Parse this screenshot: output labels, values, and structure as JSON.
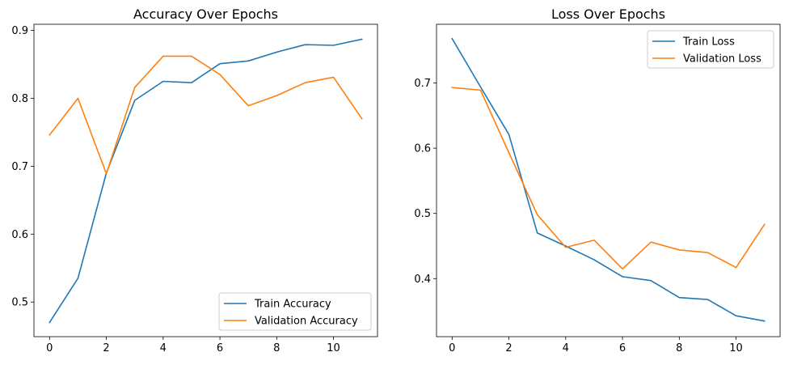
{
  "chart_data": [
    {
      "type": "line",
      "title": "Accuracy Over Epochs",
      "xlabel": "",
      "ylabel": "",
      "xlim": [
        -0.55,
        11.55
      ],
      "ylim": [
        0.449,
        0.909
      ],
      "xticks": [
        0,
        2,
        4,
        6,
        8,
        10
      ],
      "yticks": [
        0.5,
        0.6,
        0.7,
        0.8,
        0.9
      ],
      "ytick_labels": [
        "0.5",
        "0.6",
        "0.7",
        "0.8",
        "0.9"
      ],
      "grid": false,
      "legend_position": "bottom-right",
      "x": [
        0,
        1,
        2,
        3,
        4,
        5,
        6,
        7,
        8,
        9,
        10,
        11
      ],
      "series": [
        {
          "name": "Train Accuracy",
          "color": "#1f77b4",
          "values": [
            0.47,
            0.535,
            0.69,
            0.797,
            0.825,
            0.823,
            0.851,
            0.855,
            0.868,
            0.879,
            0.878,
            0.887
          ]
        },
        {
          "name": "Validation Accuracy",
          "color": "#ff7f0e",
          "values": [
            0.746,
            0.8,
            0.689,
            0.816,
            0.862,
            0.862,
            0.835,
            0.789,
            0.804,
            0.823,
            0.831,
            0.77
          ]
        }
      ]
    },
    {
      "type": "line",
      "title": "Loss Over Epochs",
      "xlabel": "",
      "ylabel": "",
      "xlim": [
        -0.55,
        11.55
      ],
      "ylim": [
        0.311,
        0.79
      ],
      "xticks": [
        0,
        2,
        4,
        6,
        8,
        10
      ],
      "yticks": [
        0.4,
        0.5,
        0.6,
        0.7
      ],
      "ytick_labels": [
        "0.4",
        "0.5",
        "0.6",
        "0.7"
      ],
      "grid": false,
      "legend_position": "top-right",
      "x": [
        0,
        1,
        2,
        3,
        4,
        5,
        6,
        7,
        8,
        9,
        10,
        11
      ],
      "series": [
        {
          "name": "Train Loss",
          "color": "#1f77b4",
          "values": [
            0.768,
            0.694,
            0.621,
            0.47,
            0.45,
            0.429,
            0.403,
            0.397,
            0.371,
            0.368,
            0.343,
            0.335
          ]
        },
        {
          "name": "Validation Loss",
          "color": "#ff7f0e",
          "values": [
            0.693,
            0.689,
            0.593,
            0.498,
            0.448,
            0.459,
            0.415,
            0.456,
            0.444,
            0.44,
            0.417,
            0.483
          ]
        }
      ]
    }
  ]
}
